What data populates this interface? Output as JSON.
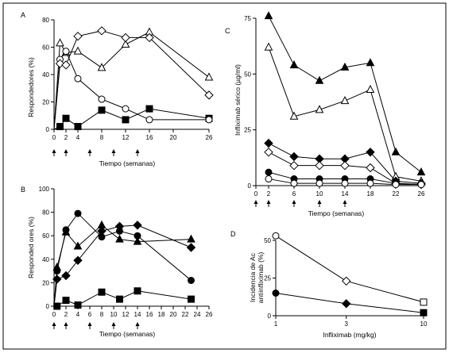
{
  "chart_data": [
    {
      "panel": "A",
      "type": "line",
      "xlabel": "Tiempo (semanas)",
      "ylabel": "Respondedores (%)",
      "xlim": [
        0,
        26
      ],
      "ylim": [
        0,
        80
      ],
      "xticks": [
        0,
        2,
        4,
        8,
        12,
        16,
        20,
        26
      ],
      "yticks": [
        0,
        20,
        40,
        60,
        80
      ],
      "infusion_arrows": [
        0,
        2,
        6,
        10,
        14
      ],
      "series": [
        {
          "marker": "square",
          "filled": true,
          "x": [
            0,
            1,
            2,
            4,
            8,
            12,
            16,
            26
          ],
          "y": [
            0,
            2,
            8,
            2,
            14,
            7,
            15,
            8
          ]
        },
        {
          "marker": "triangle",
          "filled": false,
          "x": [
            0,
            1,
            2,
            4,
            8,
            12,
            16,
            26
          ],
          "y": [
            0,
            63,
            56,
            57,
            45,
            62,
            71,
            38
          ]
        },
        {
          "marker": "circle",
          "filled": false,
          "x": [
            0,
            1,
            2,
            4,
            8,
            12,
            16,
            26
          ],
          "y": [
            0,
            51,
            57,
            37,
            22,
            15,
            7,
            7
          ]
        },
        {
          "marker": "diamond",
          "filled": false,
          "x": [
            0,
            1,
            2,
            4,
            8,
            12,
            16,
            26
          ],
          "y": [
            0,
            48,
            47,
            68,
            72,
            67,
            67,
            25
          ]
        }
      ]
    },
    {
      "panel": "B",
      "type": "line",
      "xlabel": "Tiempo (semanas)",
      "ylabel": "Responded ores (%)",
      "xlim": [
        0,
        26
      ],
      "ylim": [
        0,
        100
      ],
      "xticks": [
        0,
        2,
        4,
        6,
        8,
        10,
        12,
        14,
        16,
        18,
        20,
        22,
        24,
        26
      ],
      "yticks": [
        0,
        20,
        40,
        60,
        80,
        100
      ],
      "infusion_arrows": [
        0,
        2,
        6,
        10,
        14
      ],
      "series": [
        {
          "marker": "square",
          "filled": true,
          "x": [
            0,
            0.5,
            2,
            4,
            8,
            11,
            14,
            23
          ],
          "y": [
            0,
            0,
            5,
            1,
            12,
            6,
            13,
            6
          ]
        },
        {
          "marker": "triangle",
          "filled": true,
          "x": [
            0,
            0.5,
            2,
            4,
            8,
            11,
            14,
            23
          ],
          "y": [
            0,
            33,
            63,
            51,
            69,
            57,
            55,
            57
          ]
        },
        {
          "marker": "circle",
          "filled": true,
          "x": [
            0,
            0.5,
            2,
            4,
            8,
            11,
            14,
            23
          ],
          "y": [
            0,
            30,
            65,
            79,
            59,
            64,
            60,
            22
          ]
        },
        {
          "marker": "diamond",
          "filled": true,
          "x": [
            0,
            0.5,
            2,
            4,
            8,
            11,
            14,
            23
          ],
          "y": [
            0,
            23,
            26,
            39,
            64,
            68,
            69,
            50
          ]
        }
      ]
    },
    {
      "panel": "C",
      "type": "line",
      "xlabel": "Tiempo (semanas)",
      "ylabel": "Infliximab sérico (µg/ml)",
      "xlim": [
        0,
        26
      ],
      "ylim": [
        0,
        75
      ],
      "xticks": [
        0,
        2,
        6,
        10,
        14,
        18,
        22,
        26
      ],
      "yticks": [
        0,
        25,
        50,
        75
      ],
      "infusion_arrows": [
        0,
        2,
        6,
        10,
        14
      ],
      "series": [
        {
          "marker": "triangle",
          "filled": true,
          "x": [
            2,
            6,
            10,
            14,
            18,
            22,
            26
          ],
          "y": [
            76,
            54,
            47,
            53,
            55,
            15,
            6
          ]
        },
        {
          "marker": "triangle",
          "filled": false,
          "x": [
            2,
            6,
            10,
            14,
            18,
            22,
            26
          ],
          "y": [
            62,
            31,
            34,
            38,
            43,
            4,
            2
          ]
        },
        {
          "marker": "diamond",
          "filled": true,
          "x": [
            2,
            6,
            10,
            14,
            18,
            22,
            26
          ],
          "y": [
            19,
            13,
            12,
            12,
            15,
            2,
            1
          ]
        },
        {
          "marker": "diamond",
          "filled": false,
          "x": [
            2,
            6,
            10,
            14,
            18,
            22,
            26
          ],
          "y": [
            15,
            9,
            9,
            9,
            8,
            1,
            0.5
          ]
        },
        {
          "marker": "circle",
          "filled": true,
          "x": [
            2,
            6,
            10,
            14,
            18,
            22,
            26
          ],
          "y": [
            6,
            3,
            3,
            3,
            3,
            1,
            0.5
          ]
        },
        {
          "marker": "circle",
          "filled": false,
          "x": [
            2,
            6,
            10,
            14,
            18,
            22,
            26
          ],
          "y": [
            3,
            1,
            1,
            1,
            1,
            0.5,
            0.5
          ]
        }
      ]
    },
    {
      "panel": "D",
      "type": "line",
      "xlabel": "Infliximab (mg/kg)",
      "ylabel": "Incidencia de Ac antiinfliximab (%)",
      "xscale": "log",
      "xlim": [
        1,
        10
      ],
      "ylim": [
        0,
        50
      ],
      "xticks": [
        1,
        3,
        10
      ],
      "yticks": [
        0,
        25,
        50
      ],
      "series": [
        {
          "marker": "mixed-open",
          "filled": false,
          "x": [
            1,
            3,
            10
          ],
          "y": [
            53,
            23,
            9
          ]
        },
        {
          "marker": "mixed-filled",
          "filled": true,
          "x": [
            1,
            3,
            10
          ],
          "y": [
            15,
            8,
            2
          ]
        }
      ]
    }
  ],
  "panel_letters": {
    "a": "A",
    "b": "B",
    "c": "C",
    "d": "D"
  },
  "labels": {
    "a_xlabel": "Tiempo (semanas)",
    "a_ylabel": "Respondedores (%)",
    "b_xlabel": "Tiempo (semanas)",
    "b_ylabel": "Responded ores (%)",
    "c_xlabel": "Tiempo (semanas)",
    "c_ylabel": "Infliximab sérico (µg/ml)",
    "d_xlabel": "Infliximab (mg/kg)",
    "d_ylabel_1": "Incidencia de Ac",
    "d_ylabel_2": "antiinfliximab (%)"
  },
  "colors": {
    "ink": "#000000",
    "background": "#ffffff"
  }
}
